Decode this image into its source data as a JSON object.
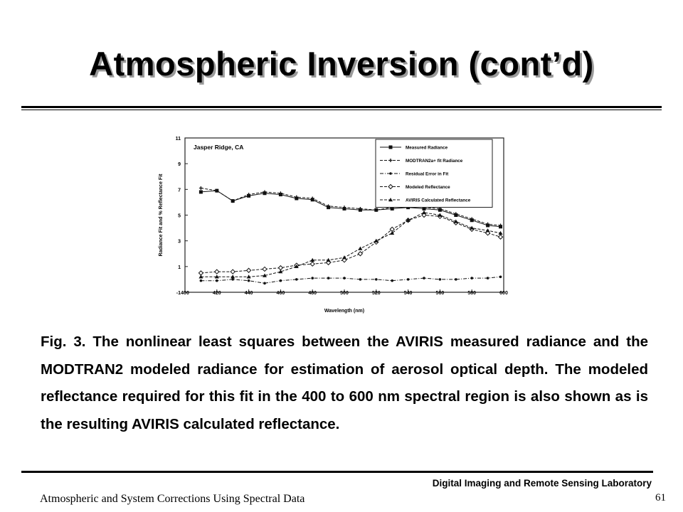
{
  "slide": {
    "title": "Atmospheric Inversion (cont’d)",
    "caption": "Fig. 3. The nonlinear least squares between the AVIRIS measured radiance and the MODTRAN2 modeled radiance for estimation of aerosol optical depth.  The modeled reflectance required for this fit in the 400 to 600 nm spectral region is also shown as is the resulting AVIRIS calculated reflectance.",
    "lab_name": "Digital Imaging and Remote Sensing Laboratory",
    "page_number": "61",
    "footer_text": "Atmospheric and System Corrections Using Spectral Data"
  },
  "chart_data": {
    "type": "line",
    "title": "Jasper Ridge, CA",
    "xlabel": "Wavelength (nm)",
    "ylabel": "Radiance Fit and % Reflectance Fit",
    "xlim": [
      400,
      600
    ],
    "ylim": [
      -1,
      11
    ],
    "xticks": [
      400,
      420,
      440,
      460,
      480,
      500,
      520,
      540,
      560,
      580,
      600
    ],
    "xtick_labels": [
      "400",
      "420",
      "440",
      "460",
      "480",
      "500",
      "520",
      "540",
      "560",
      "580",
      "600"
    ],
    "yticks": [
      -1,
      1,
      3,
      5,
      7,
      9,
      11
    ],
    "ytick_labels": [
      "-1",
      "1",
      "3",
      "5",
      "7",
      "9",
      "11"
    ],
    "legend_position": "top-right",
    "x": [
      410,
      420,
      430,
      440,
      450,
      460,
      470,
      480,
      490,
      500,
      510,
      520,
      530,
      540,
      550,
      560,
      570,
      580,
      590,
      598
    ],
    "series": [
      {
        "name": "Measured Radiance",
        "marker": "square",
        "dash": "solid",
        "values": [
          6.8,
          6.9,
          6.1,
          6.5,
          6.7,
          6.6,
          6.3,
          6.2,
          5.6,
          5.5,
          5.4,
          5.4,
          5.5,
          5.6,
          5.5,
          5.4,
          5.0,
          4.6,
          4.2,
          4.1
        ]
      },
      {
        "name": "MODTRAN2a+ fit Radiance",
        "marker": "cross",
        "dash": "dashed",
        "values": [
          7.1,
          6.9,
          6.1,
          6.6,
          6.8,
          6.7,
          6.4,
          6.3,
          5.7,
          5.6,
          5.5,
          5.4,
          5.6,
          5.7,
          5.6,
          5.5,
          5.1,
          4.7,
          4.3,
          4.2
        ]
      },
      {
        "name": "Residual Error in Fit",
        "marker": "dot",
        "dash": "dashdot",
        "values": [
          -0.1,
          -0.1,
          0.0,
          -0.1,
          -0.3,
          -0.1,
          0.0,
          0.1,
          0.1,
          0.1,
          0.0,
          0.0,
          -0.1,
          0.0,
          0.1,
          0.0,
          0.0,
          0.1,
          0.1,
          0.2
        ]
      },
      {
        "name": "Modeled Reflectance",
        "marker": "diamond-open",
        "dash": "dashed",
        "values": [
          0.5,
          0.6,
          0.6,
          0.7,
          0.8,
          0.9,
          1.1,
          1.2,
          1.3,
          1.5,
          2.0,
          2.9,
          3.9,
          4.6,
          5.0,
          4.9,
          4.4,
          3.9,
          3.6,
          3.3
        ]
      },
      {
        "name": "AVIRIS Calculated Reflectance",
        "marker": "triangle",
        "dash": "dashed",
        "values": [
          0.2,
          0.2,
          0.2,
          0.2,
          0.3,
          0.6,
          1.0,
          1.5,
          1.5,
          1.7,
          2.4,
          3.0,
          3.6,
          4.6,
          5.2,
          5.0,
          4.5,
          4.0,
          3.8,
          3.6
        ]
      }
    ]
  }
}
